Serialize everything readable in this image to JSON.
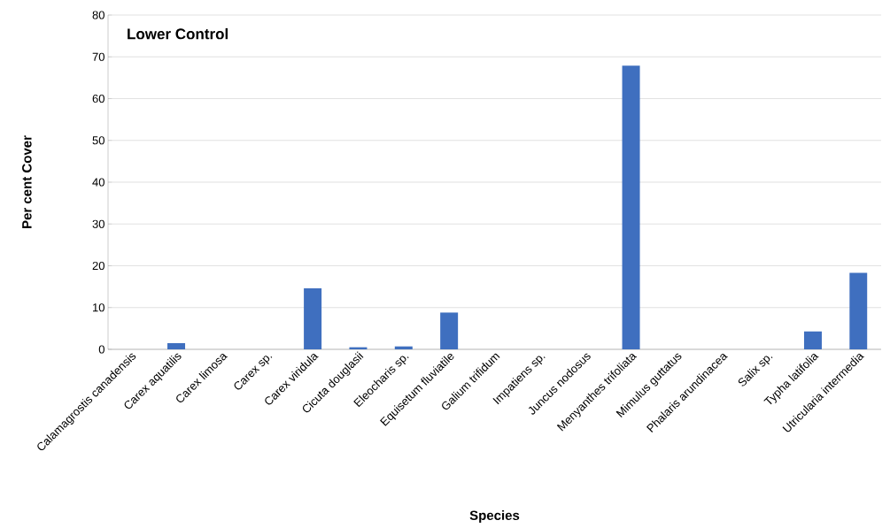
{
  "chart_data": {
    "type": "bar",
    "title": "Lower Control",
    "xlabel": "Species",
    "ylabel": "Per cent Cover",
    "categories": [
      "Calamagrostis canadensis",
      "Carex aquatilis",
      "Carex limosa",
      "Carex sp.",
      "Carex viridula",
      "Cicuta douglasii",
      "Eleocharis sp.",
      "Equisetum fluviatile",
      "Galium trifidum",
      "Impatiens sp.",
      "Juncus nodosus",
      "Menyanthes trifoliata",
      "Mimulus guttatus",
      "Phalaris arundinacea",
      "Salix sp.",
      "Typha latifolia",
      "Utricularia intermedia"
    ],
    "values": [
      0,
      1.5,
      0,
      0,
      14.6,
      0.5,
      0.7,
      8.8,
      0,
      0,
      0,
      67.9,
      0,
      0,
      0,
      4.3,
      18.3
    ],
    "color": "#3f6fbf",
    "ylim": [
      0,
      80
    ],
    "yticks": [
      0,
      10,
      20,
      30,
      40,
      50,
      60,
      70,
      80
    ],
    "grid": "y"
  }
}
